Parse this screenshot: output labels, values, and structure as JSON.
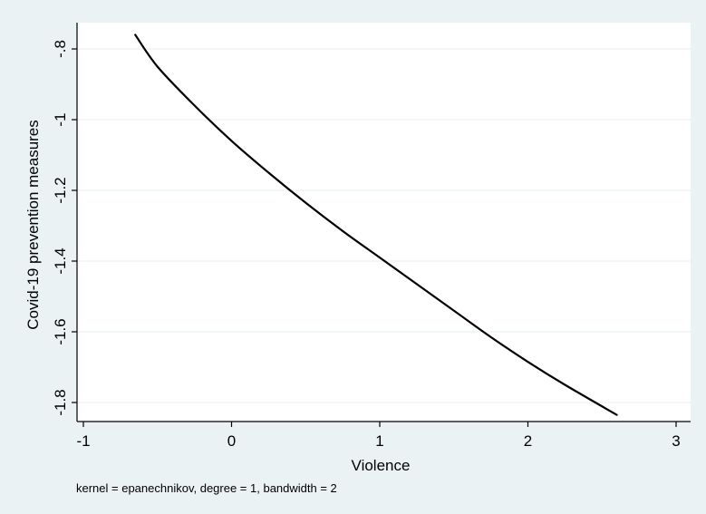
{
  "colors": {
    "outer_background": "#eaf2f3",
    "plot_background": "#ffffff",
    "gridline": "#eaf2f3",
    "line": "#000000",
    "axis": "#000000"
  },
  "chart_data": {
    "type": "line",
    "title": "",
    "xlabel": "Violence",
    "ylabel": "Covid-19 prevention measures",
    "note": "kernel = epanechnikov, degree = 1, bandwidth = 2",
    "xlim": [
      -1,
      3
    ],
    "ylim": [
      -1.8,
      -0.8
    ],
    "x_ticks": [
      -1,
      0,
      1,
      2,
      3
    ],
    "x_tick_labels": [
      "-1",
      "0",
      "1",
      "2",
      "3"
    ],
    "y_ticks": [
      -0.8,
      -1,
      -1.2,
      -1.4,
      -1.6,
      -1.8
    ],
    "y_tick_labels": [
      "-.8",
      "-1",
      "-1.2",
      "-1.4",
      "-1.6",
      "-1.8"
    ],
    "grid": true,
    "series": [
      {
        "x": [
          -0.65,
          -0.5,
          -0.25,
          0,
          0.25,
          0.5,
          0.75,
          1,
          1.25,
          1.5,
          1.75,
          2,
          2.25,
          2.6
        ],
        "y": [
          -0.76,
          -0.85,
          -0.96,
          -1.06,
          -1.15,
          -1.235,
          -1.315,
          -1.39,
          -1.465,
          -1.54,
          -1.615,
          -1.685,
          -1.75,
          -1.835
        ]
      }
    ]
  }
}
